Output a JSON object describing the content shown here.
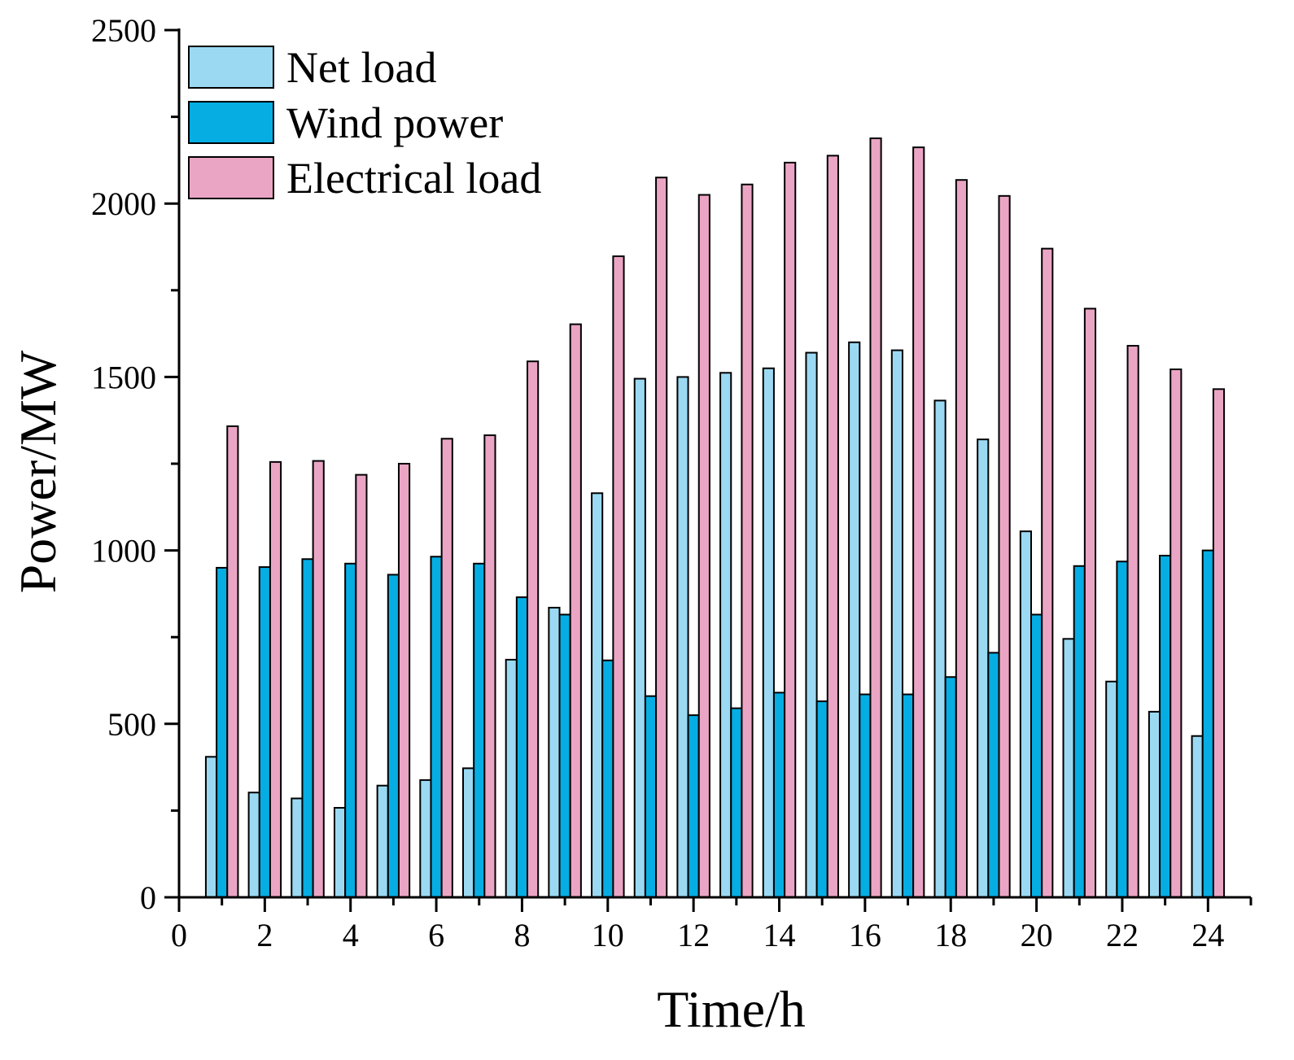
{
  "chart_data": {
    "type": "bar",
    "title": "",
    "xlabel": "Time/h",
    "ylabel": "Power/MW",
    "xlim": [
      0,
      25
    ],
    "ylim": [
      0,
      2500
    ],
    "x_ticks": [
      0,
      2,
      4,
      6,
      8,
      10,
      12,
      14,
      16,
      18,
      20,
      22,
      24
    ],
    "y_ticks": [
      0,
      500,
      1000,
      1500,
      2000,
      2500
    ],
    "legend_position": "top-left",
    "categories": [
      1,
      2,
      3,
      4,
      5,
      6,
      7,
      8,
      9,
      10,
      11,
      12,
      13,
      14,
      15,
      16,
      17,
      18,
      19,
      20,
      21,
      22,
      23,
      24
    ],
    "series": [
      {
        "name": "Net load",
        "color": "#9bd9f2",
        "values": [
          405,
          302,
          285,
          258,
          322,
          338,
          372,
          685,
          835,
          1165,
          1495,
          1500,
          1512,
          1525,
          1570,
          1600,
          1577,
          1432,
          1320,
          1055,
          745,
          622,
          535,
          465
        ]
      },
      {
        "name": "Wind power",
        "color": "#05ade3",
        "values": [
          950,
          952,
          975,
          962,
          930,
          982,
          962,
          865,
          815,
          683,
          580,
          525,
          545,
          590,
          565,
          585,
          585,
          635,
          705,
          815,
          955,
          968,
          985,
          1000
        ]
      },
      {
        "name": "Electrical load",
        "color": "#eba5c4",
        "values": [
          1358,
          1255,
          1258,
          1218,
          1250,
          1322,
          1332,
          1545,
          1652,
          1848,
          2075,
          2025,
          2055,
          2118,
          2138,
          2188,
          2162,
          2068,
          2022,
          1870,
          1697,
          1590,
          1522,
          1465
        ]
      }
    ]
  }
}
